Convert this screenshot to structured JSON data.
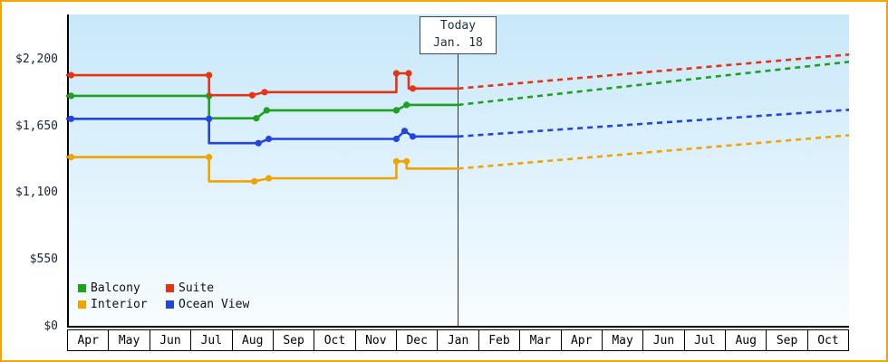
{
  "chart_data": {
    "type": "line",
    "title": "",
    "x_months": [
      "Apr",
      "May",
      "Jun",
      "Jul",
      "Aug",
      "Sep",
      "Oct",
      "Nov",
      "Dec",
      "Jan",
      "Feb",
      "Mar",
      "Apr",
      "May",
      "Jun",
      "Jul",
      "Aug",
      "Sep",
      "Oct"
    ],
    "y_ticks": [
      {
        "value": 0,
        "label": "$0"
      },
      {
        "value": 550,
        "label": "$550"
      },
      {
        "value": 1100,
        "label": "$1,100"
      },
      {
        "value": 1650,
        "label": "$1,650"
      },
      {
        "value": 2200,
        "label": "$2,200"
      }
    ],
    "ylim": [
      0,
      2580
    ],
    "today": {
      "label": "Today",
      "date": "Jan. 18",
      "month_index": 9.5
    },
    "series": [
      {
        "name": "Balcony",
        "color": "#1fa11f",
        "history": [
          [
            0,
            1910
          ],
          [
            3.45,
            1910
          ],
          [
            3.45,
            1725
          ],
          [
            4.6,
            1725
          ],
          [
            4.85,
            1790
          ],
          [
            8.0,
            1790
          ],
          [
            8.25,
            1835
          ],
          [
            9.5,
            1835
          ]
        ],
        "dots": [
          [
            0.1,
            1910
          ],
          [
            3.45,
            1910
          ],
          [
            4.6,
            1725
          ],
          [
            4.85,
            1790
          ],
          [
            8.0,
            1790
          ],
          [
            8.25,
            1835
          ]
        ],
        "forecast": [
          [
            9.5,
            1835
          ],
          [
            19,
            2190
          ]
        ]
      },
      {
        "name": "Suite",
        "color": "#e63312",
        "history": [
          [
            0,
            2080
          ],
          [
            3.45,
            2080
          ],
          [
            3.45,
            1915
          ],
          [
            4.5,
            1915
          ],
          [
            4.8,
            1940
          ],
          [
            8.0,
            1940
          ],
          [
            8.0,
            2095
          ],
          [
            8.3,
            2095
          ],
          [
            8.3,
            1970
          ],
          [
            9.5,
            1970
          ]
        ],
        "dots": [
          [
            0.1,
            2080
          ],
          [
            3.45,
            2080
          ],
          [
            4.5,
            1915
          ],
          [
            4.8,
            1940
          ],
          [
            8.0,
            2095
          ],
          [
            8.3,
            2095
          ],
          [
            8.4,
            1970
          ]
        ],
        "forecast": [
          [
            9.5,
            1970
          ],
          [
            19,
            2250
          ]
        ]
      },
      {
        "name": "Interior",
        "color": "#f0a400",
        "history": [
          [
            0,
            1405
          ],
          [
            3.45,
            1405
          ],
          [
            3.45,
            1205
          ],
          [
            4.55,
            1205
          ],
          [
            4.9,
            1230
          ],
          [
            8.0,
            1230
          ],
          [
            8.0,
            1370
          ],
          [
            8.25,
            1370
          ],
          [
            8.25,
            1310
          ],
          [
            9.5,
            1310
          ]
        ],
        "dots": [
          [
            0.1,
            1405
          ],
          [
            3.45,
            1405
          ],
          [
            4.55,
            1205
          ],
          [
            4.9,
            1230
          ],
          [
            8.0,
            1370
          ],
          [
            8.25,
            1370
          ]
        ],
        "forecast": [
          [
            9.5,
            1310
          ],
          [
            19,
            1585
          ]
        ]
      },
      {
        "name": "Ocean View",
        "color": "#2244e0",
        "history": [
          [
            0,
            1720
          ],
          [
            3.45,
            1720
          ],
          [
            3.45,
            1520
          ],
          [
            4.65,
            1520
          ],
          [
            4.9,
            1555
          ],
          [
            8.0,
            1555
          ],
          [
            8.2,
            1620
          ],
          [
            8.4,
            1575
          ],
          [
            9.5,
            1575
          ]
        ],
        "dots": [
          [
            0.1,
            1720
          ],
          [
            3.45,
            1720
          ],
          [
            4.65,
            1520
          ],
          [
            4.9,
            1555
          ],
          [
            8.0,
            1555
          ],
          [
            8.2,
            1620
          ],
          [
            8.4,
            1575
          ]
        ],
        "forecast": [
          [
            9.5,
            1575
          ],
          [
            19,
            1795
          ]
        ]
      }
    ],
    "legend_position": "bottom-left",
    "grid": false
  },
  "colors": {
    "frame_border": "#f7a400",
    "axis": "#000000",
    "today_line": "#333333",
    "plot_gradient_top": "#c8e8fa",
    "plot_gradient_bottom": "#f8fdff"
  }
}
